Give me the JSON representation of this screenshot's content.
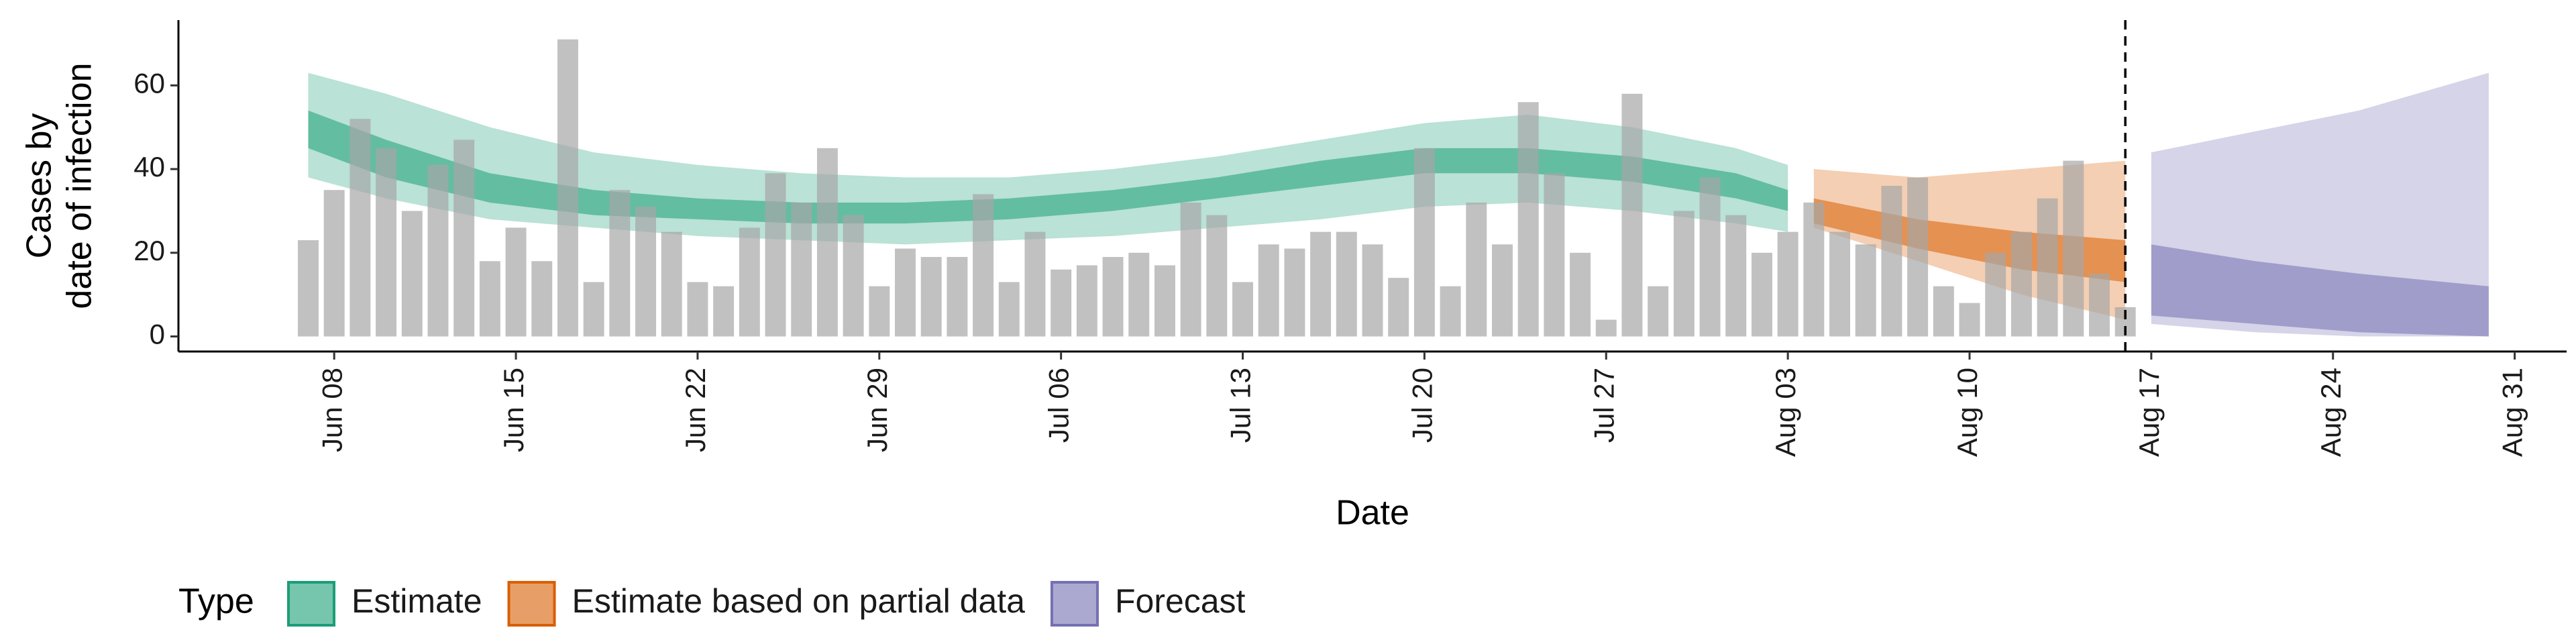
{
  "chart_data": {
    "type": "bar",
    "x_label": "Date",
    "y_label": [
      "Cases by",
      "date of infection"
    ],
    "legend_title": "Type",
    "legend_position": "bottom",
    "x": [
      "Jun 07",
      "Jun 08",
      "Jun 09",
      "Jun 10",
      "Jun 11",
      "Jun 12",
      "Jun 13",
      "Jun 14",
      "Jun 15",
      "Jun 16",
      "Jun 17",
      "Jun 18",
      "Jun 19",
      "Jun 20",
      "Jun 21",
      "Jun 22",
      "Jun 23",
      "Jun 24",
      "Jun 25",
      "Jun 26",
      "Jun 27",
      "Jun 28",
      "Jun 29",
      "Jun 30",
      "Jul 01",
      "Jul 02",
      "Jul 03",
      "Jul 04",
      "Jul 05",
      "Jul 06",
      "Jul 07",
      "Jul 08",
      "Jul 09",
      "Jul 10",
      "Jul 11",
      "Jul 12",
      "Jul 13",
      "Jul 14",
      "Jul 15",
      "Jul 16",
      "Jul 17",
      "Jul 18",
      "Jul 19",
      "Jul 20",
      "Jul 21",
      "Jul 22",
      "Jul 23",
      "Jul 24",
      "Jul 25",
      "Jul 26",
      "Jul 27",
      "Jul 28",
      "Jul 29",
      "Jul 30",
      "Jul 31",
      "Aug 01",
      "Aug 02",
      "Aug 03",
      "Aug 04",
      "Aug 05",
      "Aug 06",
      "Aug 07",
      "Aug 08",
      "Aug 09",
      "Aug 10",
      "Aug 11",
      "Aug 12",
      "Aug 13",
      "Aug 14",
      "Aug 15",
      "Aug 16"
    ],
    "values": [
      23,
      35,
      52,
      45,
      30,
      41,
      47,
      18,
      26,
      18,
      71,
      13,
      35,
      31,
      25,
      13,
      12,
      26,
      39,
      32,
      45,
      29,
      12,
      21,
      19,
      19,
      34,
      13,
      25,
      16,
      17,
      19,
      20,
      17,
      32,
      29,
      13,
      22,
      21,
      25,
      25,
      22,
      14,
      45,
      12,
      32,
      22,
      56,
      39,
      20,
      4,
      58,
      12,
      30,
      38,
      29,
      20,
      25,
      32,
      25,
      22,
      36,
      38,
      12,
      8,
      20,
      25,
      33,
      42,
      15,
      7
    ],
    "color": "#a6a6a6",
    "ribbons": [
      {
        "name": "Estimate",
        "color": "#1b9e77",
        "x": [
          "Jun 07",
          "Jun 10",
          "Jun 14",
          "Jun 18",
          "Jun 22",
          "Jun 26",
          "Jun 30",
          "Jul 04",
          "Jul 08",
          "Jul 12",
          "Jul 16",
          "Jul 20",
          "Jul 24",
          "Jul 28",
          "Aug 01",
          "Aug 03"
        ],
        "upper90": [
          63,
          58,
          50,
          44,
          41,
          39,
          38,
          38,
          40,
          43,
          47,
          51,
          53,
          50,
          45,
          41
        ],
        "lower90": [
          38,
          33,
          28,
          26,
          24,
          23,
          22,
          23,
          24,
          26,
          28,
          31,
          32,
          30,
          27,
          25
        ],
        "upper50": [
          54,
          47,
          39,
          35,
          33,
          32,
          32,
          33,
          35,
          38,
          42,
          45,
          45,
          43,
          39,
          35
        ],
        "lower50": [
          45,
          38,
          32,
          29,
          28,
          27,
          27,
          28,
          30,
          33,
          36,
          39,
          39,
          37,
          33,
          30
        ]
      },
      {
        "name": "Estimate based on partial data",
        "color": "#d95f02",
        "x": [
          "Aug 04",
          "Aug 08",
          "Aug 12",
          "Aug 16"
        ],
        "upper90": [
          40,
          38,
          40,
          42
        ],
        "lower90": [
          26,
          18,
          10,
          4
        ],
        "upper50": [
          33,
          28,
          25,
          23
        ],
        "lower50": [
          27,
          21,
          16,
          13
        ]
      },
      {
        "name": "Forecast",
        "color": "#7570b3",
        "x": [
          "Aug 17",
          "Aug 21",
          "Aug 25",
          "Aug 30"
        ],
        "upper90": [
          44,
          49,
          54,
          63
        ],
        "lower90": [
          3,
          1,
          0,
          0
        ],
        "upper50": [
          22,
          18,
          15,
          12
        ],
        "lower50": [
          5,
          3,
          1,
          0
        ]
      }
    ],
    "vline": "Aug 16",
    "xlim": [
      "Jun 02",
      "Sep 02"
    ],
    "xticks": [
      "Jun 08",
      "Jun 15",
      "Jun 22",
      "Jun 29",
      "Jul 06",
      "Jul 13",
      "Jul 20",
      "Jul 27",
      "Aug 03",
      "Aug 10",
      "Aug 17",
      "Aug 24",
      "Aug 31"
    ],
    "ylim": [
      -3.6,
      75.6
    ],
    "yticks": [
      0,
      20,
      40,
      60
    ],
    "grid": false
  }
}
